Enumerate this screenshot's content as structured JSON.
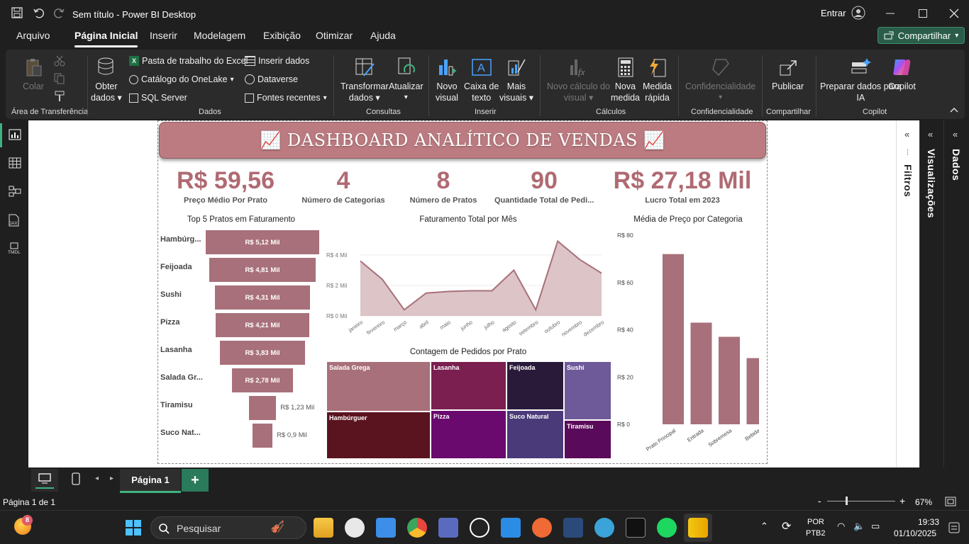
{
  "window": {
    "title": "Sem título - Power BI Desktop",
    "signin": "Entrar"
  },
  "menu": [
    "Arquivo",
    "Página Inicial",
    "Inserir",
    "Modelagem",
    "Exibição",
    "Otimizar",
    "Ajuda"
  ],
  "share_label": "Compartilhar",
  "ribbon": {
    "colar": "Colar",
    "area_transf": "Área de Transferência",
    "obter_dados": "Obter",
    "obter_dados2": "dados",
    "excel": "Pasta de trabalho do Excel",
    "onelake": "Catálogo do OneLake",
    "sqlserver": "SQL Server",
    "inserir_dados": "Inserir dados",
    "dataverse": "Dataverse",
    "fontes": "Fontes recentes",
    "dados_label": "Dados",
    "transformar": "Transformar",
    "transformar2": "dados",
    "atualizar": "Atualizar",
    "consultas_label": "Consultas",
    "novo_visual": "Novo",
    "novo_visual2": "visual",
    "caixa_texto": "Caixa de",
    "caixa_texto2": "texto",
    "mais_visuais": "Mais",
    "mais_visuais2": "visuais",
    "inserir_label": "Inserir",
    "novo_calc": "Novo cálculo do",
    "novo_calc2": "visual",
    "nova_medida": "Nova",
    "nova_medida2": "medida",
    "medida_rapida": "Medida",
    "medida_rapida2": "rápida",
    "calculos_label": "Cálculos",
    "confid": "Confidencialidade",
    "confid_label": "Confidencialidade",
    "publicar": "Publicar",
    "compartilhar_label": "Compartilhar",
    "preparar": "Preparar dados para",
    "preparar2": "IA",
    "copilot": "Copilot",
    "copilot_label": "Copilot"
  },
  "dashboard": {
    "title": "📈 DASHBOARD ANALÍTICO DE VENDAS 📈",
    "kpis": [
      {
        "value": "R$ 59,56",
        "label": "Preço Médio Por Prato"
      },
      {
        "value": "4",
        "label": "Número de Categorias"
      },
      {
        "value": "8",
        "label": "Número de Pratos"
      },
      {
        "value": "90",
        "label": "Quantidade Total de Pedi..."
      },
      {
        "value": "R$ 27,18 Mil",
        "label": "Lucro Total em 2023"
      }
    ]
  },
  "panes": {
    "filtros": "Filtros",
    "visualizacoes": "Visualizações",
    "dados": "Dados"
  },
  "page_tab": "Página 1",
  "status": {
    "page": "Página 1 de 1",
    "zoom": "67%"
  },
  "taskbar": {
    "search": "Pesquisar",
    "lang1": "POR",
    "lang2": "PTB2",
    "time": "19:33",
    "date": "01/10/2025",
    "badge": "8"
  },
  "chart_data": [
    {
      "type": "bar",
      "title": "Top 5 Pratos em Faturamento",
      "orientation": "funnel",
      "categories": [
        "Hambúrg...",
        "Feijoada",
        "Sushi",
        "Pizza",
        "Lasanha",
        "Salada Gr...",
        "Tiramisu",
        "Suco Nat..."
      ],
      "values": [
        5.12,
        4.81,
        4.31,
        4.21,
        3.83,
        2.78,
        1.23,
        0.9
      ],
      "labels": [
        "R$ 5,12 Mil",
        "R$ 4,81 Mil",
        "R$ 4,31 Mil",
        "R$ 4,21 Mil",
        "R$ 3,83 Mil",
        "R$ 2,78 Mil",
        "R$ 1,23 Mil",
        "R$ 0,9 Mil"
      ],
      "color": "#a8707a"
    },
    {
      "type": "area",
      "title": "Faturamento Total por Mês",
      "categories": [
        "janeiro",
        "fevereiro",
        "março",
        "abril",
        "maio",
        "junho",
        "julho",
        "agosto",
        "setembro",
        "outubro",
        "novembro",
        "dezembro"
      ],
      "values": [
        3.6,
        2.4,
        0.4,
        1.5,
        1.6,
        1.65,
        1.65,
        3.0,
        0.4,
        4.9,
        3.7,
        2.8
      ],
      "yticks": [
        "R$ 0 Mil",
        "R$ 2 Mil",
        "R$ 4 Mil"
      ],
      "ylim": [
        0,
        5.2
      ],
      "color": "#a8707a",
      "fill": "#dcc4c7"
    },
    {
      "type": "table",
      "title": "Contagem de Pedidos por Prato",
      "cells": [
        {
          "name": "Salada Grega",
          "color": "#a8707a"
        },
        {
          "name": "Lasanha",
          "color": "#7a1f4f"
        },
        {
          "name": "Feijoada",
          "color": "#2a1a3a"
        },
        {
          "name": "Sushi",
          "color": "#6e5a99"
        },
        {
          "name": "Hambúrguer",
          "color": "#5a141f"
        },
        {
          "name": "Pizza",
          "color": "#6a0a6e"
        },
        {
          "name": "Suco Natural",
          "color": "#4a3a7a"
        },
        {
          "name": "Tiramisu",
          "color": "#5a0a5a"
        }
      ]
    },
    {
      "type": "bar",
      "title": "Média de Preço por Categoria",
      "categories": [
        "Prato Principal",
        "Entrada",
        "Sobremesa",
        "Bebida"
      ],
      "values": [
        72,
        43,
        37,
        28
      ],
      "yticks": [
        "R$ 0",
        "R$ 20",
        "R$ 40",
        "R$ 60",
        "R$ 80"
      ],
      "ylim": [
        0,
        80
      ],
      "color": "#a8707a"
    }
  ]
}
